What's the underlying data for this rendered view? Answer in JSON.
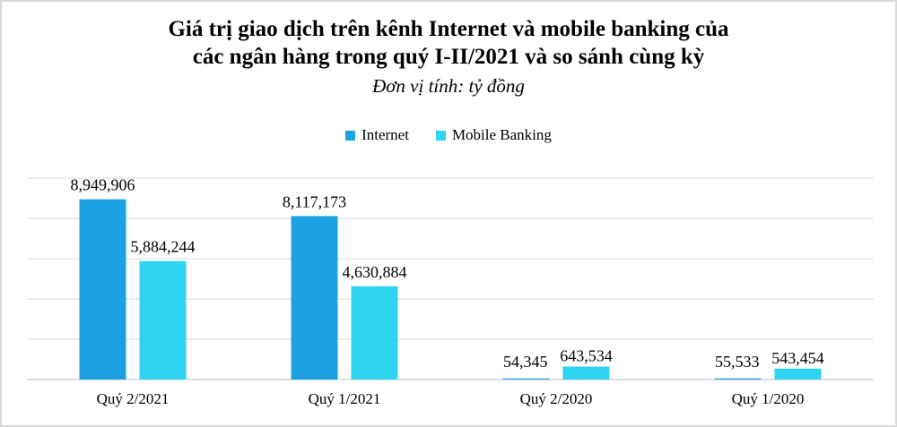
{
  "chart_data": {
    "type": "bar",
    "title_line1": "Giá trị giao dịch trên kênh Internet và mobile banking của",
    "title_line2": "các ngân hàng trong quý I-II/2021 và so sánh cùng kỳ",
    "subtitle": "Đơn vị tính: tỷ đồng",
    "categories": [
      "Quý 2/2021",
      "Quý 1/2021",
      "Quý 2/2020",
      "Quý 1/2020"
    ],
    "series": [
      {
        "name": "Internet",
        "values": [
          8949906,
          8117173,
          54345,
          55533
        ],
        "labels": [
          "8,949,906",
          "8,117,173",
          "54,345",
          "55,533"
        ],
        "color": "#1ba1e2"
      },
      {
        "name": "Mobile Banking",
        "values": [
          5884244,
          4630884,
          643534,
          543454
        ],
        "labels": [
          "5,884,244",
          "4,630,884",
          "643,534",
          "543,454"
        ],
        "color": "#2ed4f0"
      }
    ],
    "ylim": [
      0,
      10000000
    ],
    "grid": true,
    "legend": "top-center"
  }
}
